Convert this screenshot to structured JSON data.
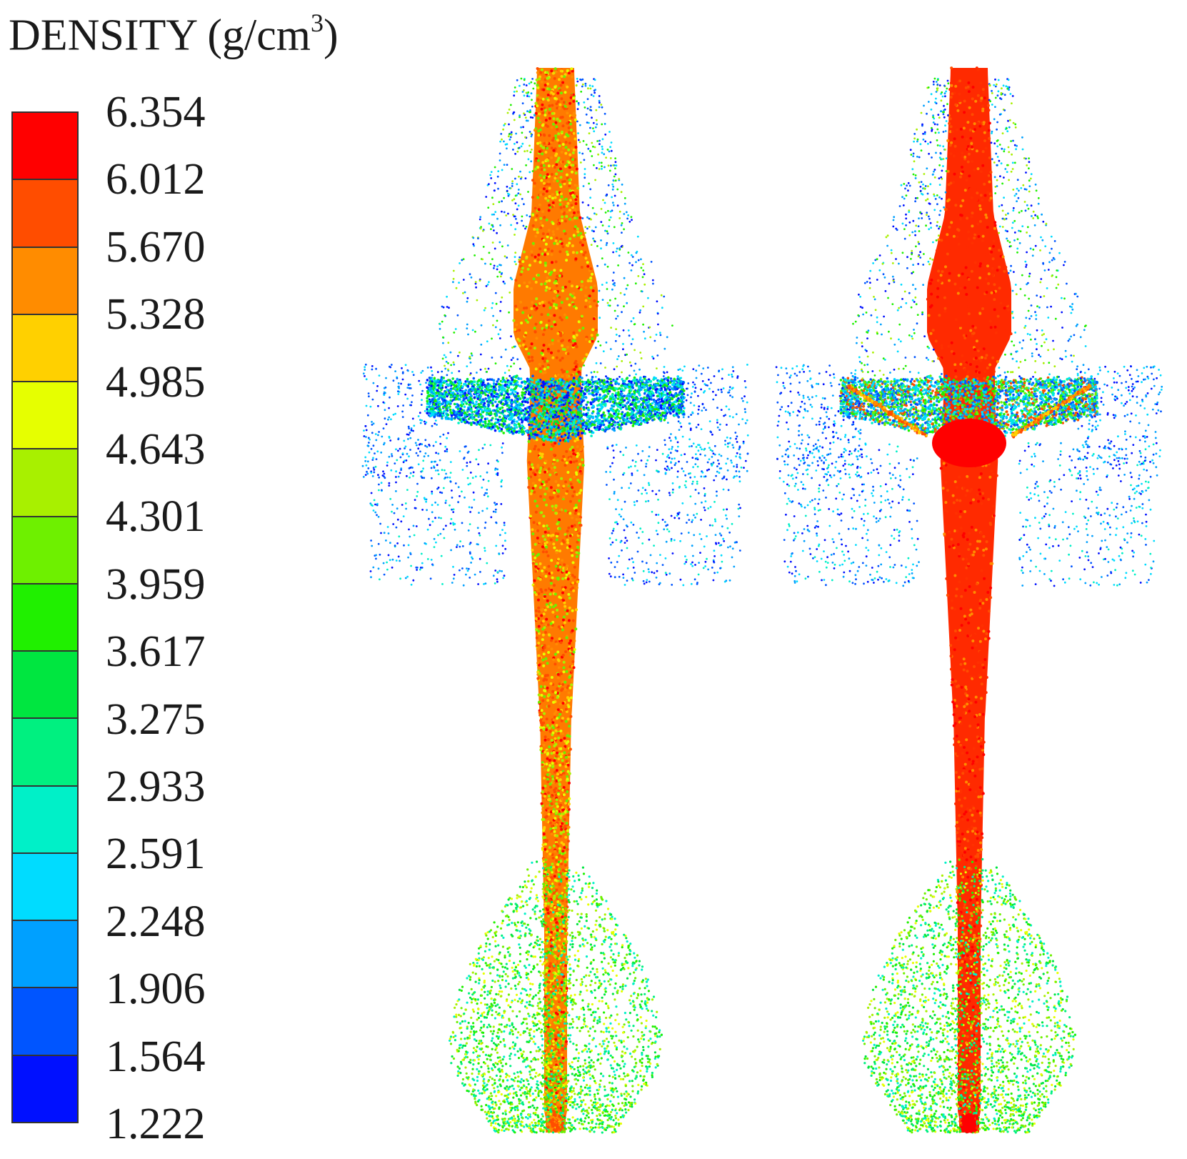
{
  "legend": {
    "title_text": "DENSITY (g/cm",
    "title_sup": "3",
    "title_end": ")",
    "ticks": [
      "6.354",
      "6.012",
      "5.670",
      "5.328",
      "4.985",
      "4.643",
      "4.301",
      "3.959",
      "3.617",
      "3.275",
      "2.933",
      "2.591",
      "2.248",
      "1.906",
      "1.564",
      "1.222"
    ],
    "colors": [
      "#ff0000",
      "#ff4d00",
      "#ff8c00",
      "#ffd000",
      "#e6ff00",
      "#a8f000",
      "#6ef000",
      "#20f000",
      "#00e640",
      "#00f080",
      "#00f0c8",
      "#00dcff",
      "#00a0ff",
      "#0055ff",
      "#0010ff"
    ]
  },
  "panels": [
    {
      "name": "left-simulation",
      "core_color": "#ff5a00"
    },
    {
      "name": "right-simulation",
      "core_color": "#ff2a00"
    }
  ]
}
